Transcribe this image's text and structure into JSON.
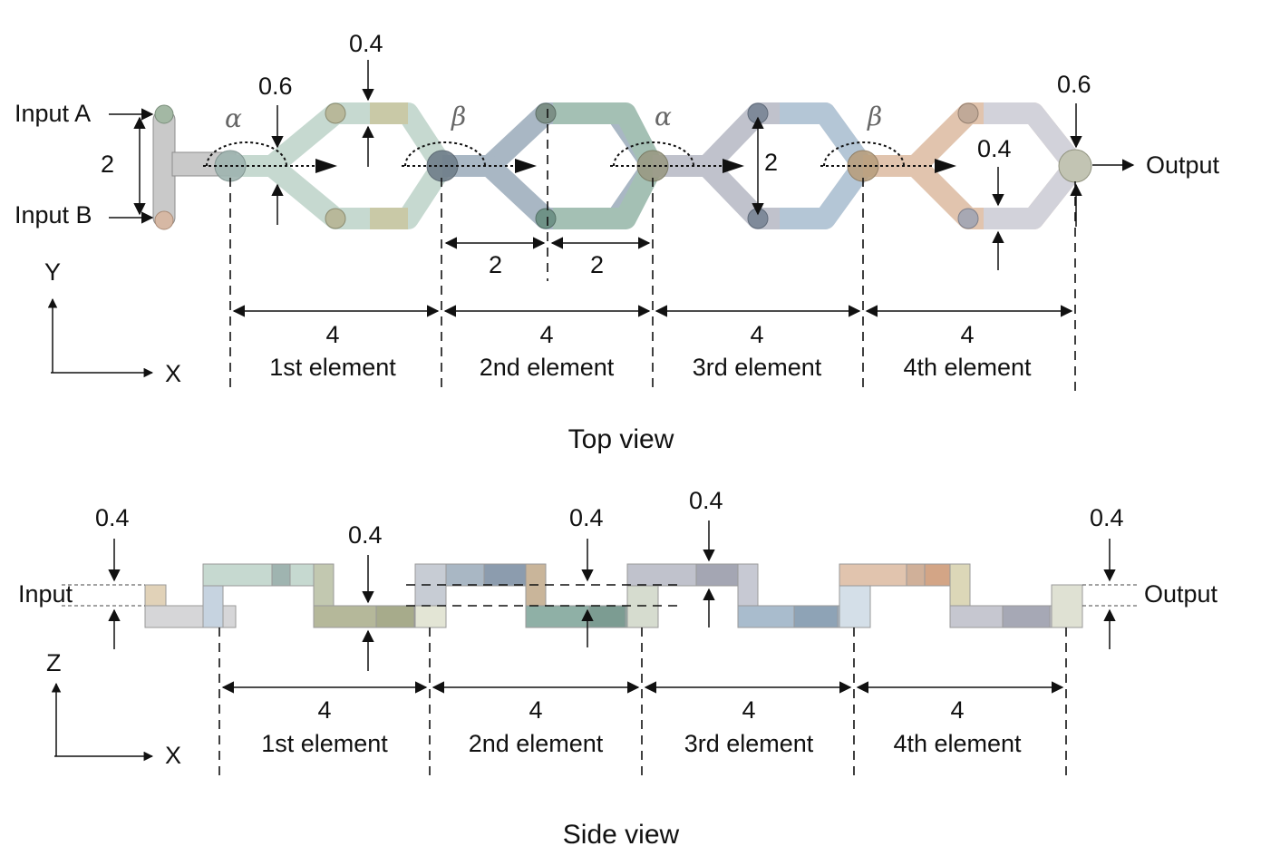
{
  "top_view": {
    "caption": "Top view",
    "inputs": {
      "a": "Input A",
      "b": "Input B"
    },
    "output": "Output",
    "axis": {
      "vertical": "Y",
      "horizontal": "X"
    },
    "angles": [
      "α",
      "β",
      "α",
      "β"
    ],
    "dims": {
      "input_spacing": "2",
      "width_inlet": "0.6",
      "width_branch": "0.4",
      "width_outlet": "0.6",
      "width_branch_right": "0.4",
      "split_height": "2",
      "half_left": "2",
      "half_right": "2"
    },
    "elements": [
      {
        "length": "4",
        "name": "1st element"
      },
      {
        "length": "4",
        "name": "2nd element"
      },
      {
        "length": "4",
        "name": "3rd element"
      },
      {
        "length": "4",
        "name": "4th element"
      }
    ]
  },
  "side_view": {
    "caption": "Side view",
    "input": "Input",
    "output": "Output",
    "axis": {
      "vertical": "Z",
      "horizontal": "X"
    },
    "dims": {
      "input_height": "0.4",
      "first_height": "0.4",
      "second_height": "0.4",
      "third_height": "0.4",
      "output_height": "0.4"
    },
    "elements": [
      {
        "length": "4",
        "name": "1st element"
      },
      {
        "length": "4",
        "name": "2nd element"
      },
      {
        "length": "4",
        "name": "3rd element"
      },
      {
        "length": "4",
        "name": "4th element"
      }
    ]
  },
  "colors": {
    "segment_1": "#b7cbc0",
    "segment_2": "#9eadbc",
    "segment_3": "#b9bcc8",
    "segment_4": "#d9b49a",
    "inlet": "#c9c9c9"
  }
}
